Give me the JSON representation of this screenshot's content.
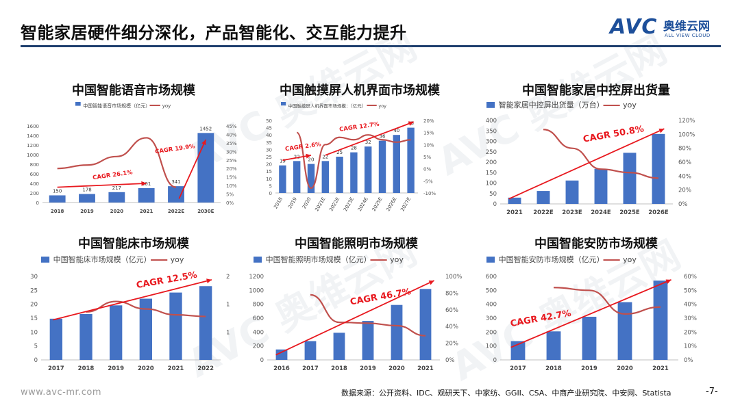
{
  "header": {
    "title": "智能家居硬件细分深化，产品智能化、交互能力提升",
    "logo_text": "AVC",
    "logo_cn": "奥维云网",
    "logo_en": "ALL VIEW CLOUD"
  },
  "watermark": {
    "text": "AVC 奥维云网"
  },
  "footer": {
    "url": "www.avc-mr.com",
    "source": "数据来源：公开资料、IDC、观研天下、中家纺、GGII、CSA、中商产业研究院、中安网、Statista",
    "page": "-7-"
  },
  "colors": {
    "bar": "#4472c4",
    "line": "#c0504d",
    "arrow": "#e8191f",
    "accent": "#1f3f6e"
  },
  "chart_data": [
    {
      "type": "bar",
      "title": "中国智能语音市场规模",
      "legend": [
        "中国智能语音市场规模（亿元）",
        "yoy"
      ],
      "categories": [
        "2018",
        "2019",
        "2020",
        "2021",
        "2022E",
        "2030E"
      ],
      "series": [
        {
          "name": "中国智能语音市场规模（亿元）",
          "values": [
            150,
            178,
            217,
            301,
            341,
            1452
          ],
          "axis": "left"
        },
        {
          "name": "yoy",
          "values": [
            20,
            22,
            27,
            38,
            9,
            null
          ],
          "axis": "right",
          "kind": "line"
        }
      ],
      "ylim": [
        0,
        1600
      ],
      "yticks": [
        0,
        200,
        400,
        600,
        800,
        1000,
        1200,
        1400,
        1600
      ],
      "y2lim": [
        0,
        45
      ],
      "y2ticks": [
        "0%",
        "5%",
        "10%",
        "15%",
        "20%",
        "25%",
        "30%",
        "35%",
        "40%",
        "45%"
      ],
      "data_labels": [
        "150",
        "178",
        "217",
        "301",
        "341",
        "1452"
      ],
      "annotations": [
        "CAGR 26.1%",
        "CAGR 19.9%"
      ]
    },
    {
      "type": "bar",
      "title": "中国触摸屏人机界面市场规模",
      "legend": [
        "中国触摸屏人机界面市场规模：（亿元）",
        "yoy"
      ],
      "categories": [
        "2018",
        "2019",
        "2020",
        "2021E",
        "2022E",
        "2023E",
        "2024E",
        "2025E",
        "2026E",
        "2027E"
      ],
      "series": [
        {
          "name": "中国触摸屏人机界面市场规模：（亿元）",
          "values": [
            19,
            22,
            20,
            22,
            25,
            28,
            32,
            36,
            40,
            45
          ],
          "axis": "left"
        },
        {
          "name": "yoy",
          "values": [
            null,
            15,
            -8,
            10,
            13,
            12,
            14,
            12,
            11,
            12
          ],
          "axis": "right",
          "kind": "line"
        }
      ],
      "ylim": [
        0,
        50
      ],
      "yticks": [
        0,
        5,
        10,
        15,
        20,
        25,
        30,
        35,
        40,
        45,
        50
      ],
      "y2lim": [
        -10,
        20
      ],
      "y2ticks": [
        "-10%",
        "-5%",
        "0%",
        "5%",
        "10%",
        "15%",
        "20%"
      ],
      "data_labels": [
        "19",
        "22",
        "20",
        "22",
        "25",
        "28",
        "32",
        "36",
        "40",
        "45"
      ],
      "annotations": [
        "CAGR 2.6%",
        "CAGR 12.7%"
      ]
    },
    {
      "type": "bar",
      "title": "中国智能家居中控屏出货量",
      "legend": [
        "智能家居中控屏出货量（万台）",
        "yoy"
      ],
      "categories": [
        "2021",
        "2022E",
        "2023E",
        "2024E",
        "2025E",
        "2026E"
      ],
      "series": [
        {
          "name": "智能家居中控屏出货量（万台）",
          "values": [
            30,
            62,
            112,
            168,
            245,
            335
          ],
          "axis": "left"
        },
        {
          "name": "yoy",
          "values": [
            null,
            107,
            80,
            50,
            45,
            37
          ],
          "axis": "right",
          "kind": "line"
        }
      ],
      "ylim": [
        0,
        400
      ],
      "yticks": [
        0,
        50,
        100,
        150,
        200,
        250,
        300,
        350,
        400
      ],
      "y2lim": [
        0,
        120
      ],
      "y2ticks": [
        "0%",
        "20%",
        "40%",
        "60%",
        "80%",
        "100%",
        "120%"
      ],
      "annotations": [
        "CAGR 50.8%"
      ]
    },
    {
      "type": "bar",
      "title": "中国智能床市场规模",
      "legend": [
        "中国智能床市场规模（亿元）",
        "yoy"
      ],
      "categories": [
        "2017",
        "2018",
        "2019",
        "2020",
        "2021",
        "2022"
      ],
      "series": [
        {
          "name": "中国智能床市场规模（亿元）",
          "values": [
            14.8,
            16.5,
            19.6,
            22,
            24.2,
            26.5
          ],
          "axis": "left"
        },
        {
          "name": "yoy",
          "values": [
            null,
            1.15,
            1.4,
            1.22,
            1.08,
            1.04
          ],
          "axis": "right",
          "kind": "line"
        }
      ],
      "ylim": [
        0,
        30
      ],
      "yticks": [
        0,
        5,
        10,
        15,
        20,
        25,
        30
      ],
      "y2lim": [
        0,
        2
      ],
      "y2ticks": [
        "",
        "",
        "1",
        "",
        "1",
        "",
        "2"
      ],
      "annotations": [
        "CAGR 12.5%"
      ]
    },
    {
      "type": "bar",
      "title": "中国智能照明市场规模",
      "legend": [
        "中国智能照明市场规模（亿元）",
        "yoy"
      ],
      "categories": [
        "2016",
        "2017",
        "2018",
        "2019",
        "2020",
        "2021"
      ],
      "series": [
        {
          "name": "中国智能照明市场规模（亿元）",
          "values": [
            150,
            270,
            390,
            560,
            790,
            1020
          ],
          "axis": "left"
        },
        {
          "name": "yoy",
          "values": [
            null,
            78,
            45,
            44,
            41,
            29
          ],
          "axis": "right",
          "kind": "line"
        }
      ],
      "ylim": [
        0,
        1200
      ],
      "yticks": [
        0,
        200,
        400,
        600,
        800,
        1000,
        1200
      ],
      "y2lim": [
        0,
        100
      ],
      "y2ticks": [
        "0%",
        "20%",
        "40%",
        "60%",
        "80%",
        "100%"
      ],
      "annotations": [
        "CAGR 46.7%"
      ]
    },
    {
      "type": "bar",
      "title": "中国智能安防市场规模",
      "legend": [
        "中国智能安防市场规模（亿元）",
        "yoy"
      ],
      "categories": [
        "2017",
        "2018",
        "2019",
        "2020",
        "2021"
      ],
      "series": [
        {
          "name": "中国智能安防市场规模（亿元）",
          "values": [
            135,
            205,
            310,
            415,
            570
          ],
          "axis": "left"
        },
        {
          "name": "yoy",
          "values": [
            null,
            52,
            50,
            33,
            38
          ],
          "axis": "right",
          "kind": "line"
        }
      ],
      "ylim": [
        0,
        600
      ],
      "yticks": [
        0,
        100,
        200,
        300,
        400,
        500,
        600
      ],
      "y2lim": [
        0,
        60
      ],
      "y2ticks": [
        "0%",
        "10%",
        "20%",
        "30%",
        "40%",
        "50%",
        "60%"
      ],
      "annotations": [
        "CAGR 42.7%"
      ]
    }
  ]
}
